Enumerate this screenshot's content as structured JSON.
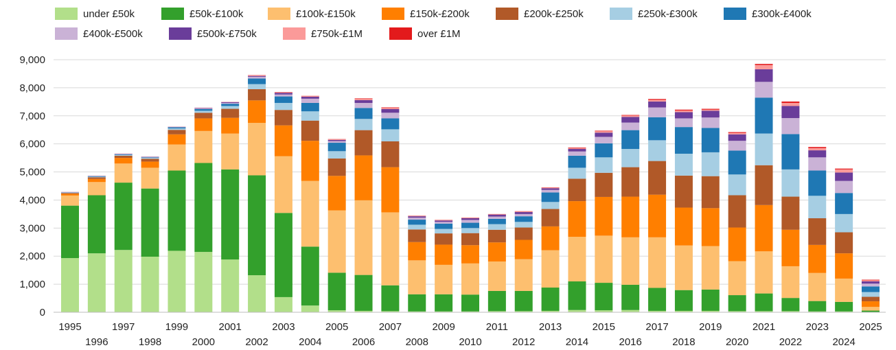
{
  "chart_data": {
    "type": "bar",
    "stacked": true,
    "title": "",
    "xlabel": "",
    "ylabel": "",
    "ylim": [
      0,
      9000
    ],
    "yticks": [
      0,
      1000,
      2000,
      3000,
      4000,
      5000,
      6000,
      7000,
      8000,
      9000
    ],
    "ytick_labels": [
      "0",
      "1,000",
      "2,000",
      "3,000",
      "4,000",
      "5,000",
      "6,000",
      "7,000",
      "8,000",
      "9,000"
    ],
    "grid": true,
    "legend_position": "top",
    "categories": [
      "1995",
      "1996",
      "1997",
      "1998",
      "1999",
      "2000",
      "2001",
      "2002",
      "2003",
      "2004",
      "2005",
      "2006",
      "2007",
      "2008",
      "2009",
      "2010",
      "2011",
      "2012",
      "2013",
      "2014",
      "2015",
      "2016",
      "2017",
      "2018",
      "2019",
      "2020",
      "2021",
      "2022",
      "2023",
      "2024",
      "2025"
    ],
    "series": [
      {
        "name": "under £50k",
        "color": "#b2df8a",
        "values": [
          1930,
          2100,
          2220,
          1980,
          2190,
          2150,
          1880,
          1320,
          540,
          240,
          70,
          50,
          40,
          30,
          30,
          30,
          40,
          40,
          50,
          80,
          70,
          80,
          50,
          50,
          50,
          40,
          40,
          40,
          30,
          30,
          10
        ]
      },
      {
        "name": "£50k-£100k",
        "color": "#33a02c",
        "values": [
          1870,
          2070,
          2400,
          2430,
          2860,
          3170,
          3210,
          3560,
          3000,
          2100,
          1340,
          1280,
          920,
          610,
          610,
          600,
          720,
          720,
          830,
          1020,
          980,
          900,
          820,
          740,
          760,
          570,
          630,
          470,
          370,
          340,
          50
        ]
      },
      {
        "name": "£100k-£150k",
        "color": "#fdbf6f",
        "values": [
          360,
          470,
          680,
          740,
          930,
          1140,
          1280,
          1870,
          2020,
          2340,
          2220,
          2660,
          2600,
          1210,
          1050,
          1110,
          1050,
          1130,
          1330,
          1590,
          1680,
          1690,
          1800,
          1590,
          1550,
          1210,
          1500,
          1130,
          1000,
          830,
          130
        ]
      },
      {
        "name": "£150k-£200k",
        "color": "#ff7f00",
        "values": [
          60,
          110,
          200,
          220,
          360,
          450,
          560,
          800,
          1100,
          1430,
          1230,
          1600,
          1610,
          650,
          720,
          650,
          680,
          690,
          850,
          1270,
          1380,
          1450,
          1520,
          1350,
          1350,
          1200,
          1650,
          1300,
          1000,
          900,
          200
        ]
      },
      {
        "name": "£200k-£250k",
        "color": "#b15928",
        "values": [
          30,
          60,
          80,
          100,
          160,
          200,
          320,
          400,
          550,
          720,
          620,
          900,
          920,
          450,
          400,
          430,
          450,
          440,
          620,
          800,
          860,
          1050,
          1200,
          1140,
          1140,
          1150,
          1420,
          1180,
          950,
          750,
          160
        ]
      },
      {
        "name": "£250k-£300k",
        "color": "#a6cee3",
        "values": [
          10,
          20,
          30,
          30,
          50,
          70,
          100,
          180,
          250,
          330,
          260,
          400,
          430,
          170,
          160,
          180,
          200,
          200,
          250,
          390,
          550,
          650,
          740,
          780,
          850,
          740,
          1130,
          970,
          800,
          650,
          170
        ]
      },
      {
        "name": "£300k-£400k",
        "color": "#1f78b4",
        "values": [
          10,
          20,
          20,
          20,
          40,
          60,
          80,
          200,
          230,
          300,
          300,
          390,
          390,
          180,
          190,
          190,
          190,
          200,
          340,
          430,
          500,
          670,
          820,
          950,
          870,
          850,
          1280,
          1260,
          900,
          750,
          200
        ]
      },
      {
        "name": "£400k-£500k",
        "color": "#cab2d6",
        "values": [
          10,
          10,
          10,
          10,
          10,
          20,
          30,
          60,
          70,
          150,
          60,
          180,
          200,
          70,
          60,
          100,
          80,
          80,
          90,
          150,
          230,
          270,
          350,
          310,
          370,
          350,
          560,
          570,
          470,
          430,
          100
        ]
      },
      {
        "name": "£500k-£750k",
        "color": "#6a3d9a",
        "values": [
          5,
          5,
          10,
          10,
          10,
          20,
          30,
          30,
          60,
          70,
          40,
          100,
          130,
          50,
          50,
          60,
          70,
          70,
          60,
          90,
          150,
          200,
          210,
          220,
          240,
          230,
          450,
          430,
          250,
          300,
          80
        ]
      },
      {
        "name": "£750k-£1M",
        "color": "#fb9a99",
        "values": [
          5,
          5,
          5,
          5,
          5,
          10,
          10,
          20,
          20,
          20,
          20,
          40,
          40,
          10,
          10,
          10,
          10,
          20,
          20,
          30,
          50,
          50,
          60,
          60,
          40,
          50,
          150,
          110,
          80,
          110,
          40
        ]
      },
      {
        "name": "over £1M",
        "color": "#e31a1c",
        "values": [
          0,
          0,
          0,
          0,
          0,
          0,
          0,
          10,
          10,
          10,
          10,
          20,
          20,
          10,
          10,
          10,
          10,
          10,
          10,
          20,
          20,
          20,
          30,
          30,
          30,
          30,
          40,
          50,
          40,
          30,
          20
        ]
      }
    ]
  }
}
